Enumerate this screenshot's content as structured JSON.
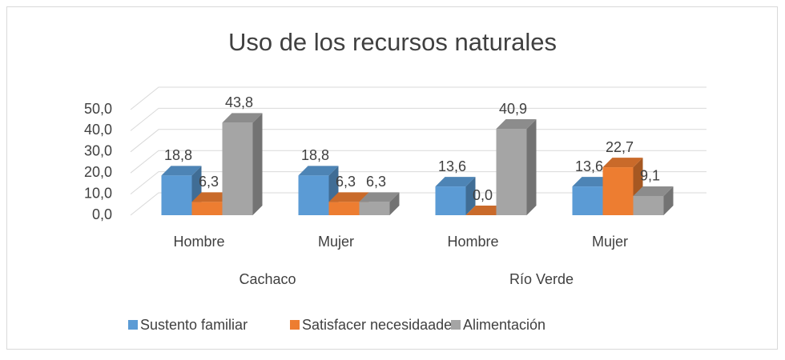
{
  "chart_data": {
    "type": "bar3d",
    "title": "Uso de los recursos naturales",
    "categories": [
      "Hombre",
      "Mujer",
      "Hombre",
      "Mujer"
    ],
    "groups": [
      "Cachaco",
      "Río Verde"
    ],
    "series": [
      {
        "name": "Sustento familiar",
        "color": "#5b9bd5",
        "values": [
          18.8,
          18.8,
          13.6,
          13.6
        ],
        "value_labels": [
          "18,8",
          "18,8",
          "13,6",
          "13,6"
        ]
      },
      {
        "name": "Satisfacer necesidaades",
        "color": "#ed7d31",
        "values": [
          6.3,
          6.3,
          0.0,
          22.7
        ],
        "value_labels": [
          "6,3",
          "6,3",
          "0,0",
          "22,7"
        ]
      },
      {
        "name": "Alimentación",
        "color": "#a5a5a5",
        "values": [
          43.8,
          6.3,
          40.9,
          9.1
        ],
        "value_labels": [
          "43,8",
          "6,3",
          "40,9",
          "9,1"
        ]
      }
    ],
    "ylim": [
      0,
      50
    ],
    "yticks": [
      {
        "value": 0,
        "label": "0,0"
      },
      {
        "value": 10,
        "label": "10,0"
      },
      {
        "value": 20,
        "label": "20,0"
      },
      {
        "value": 30,
        "label": "30,0"
      },
      {
        "value": 40,
        "label": "40,0"
      },
      {
        "value": 50,
        "label": "50,0"
      }
    ],
    "grid": true,
    "legend": "bottom"
  }
}
